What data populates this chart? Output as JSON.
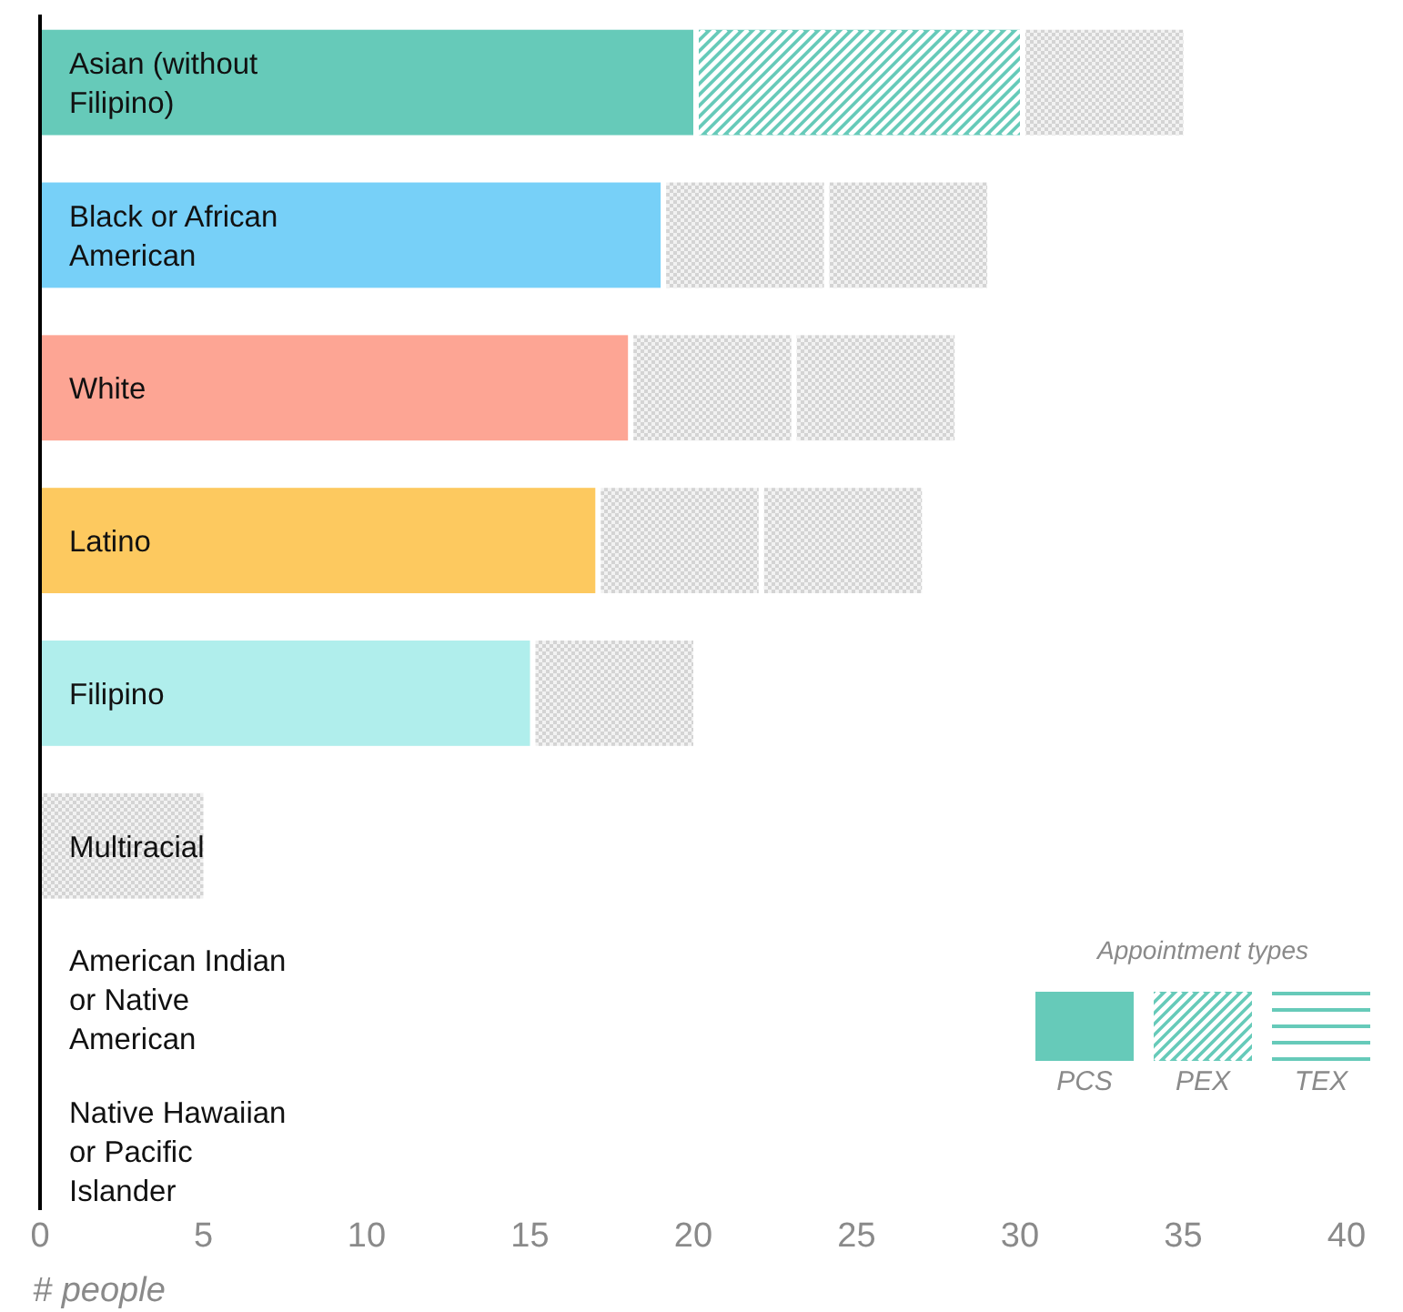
{
  "chart_data": {
    "type": "bar",
    "orientation": "horizontal",
    "stacked": true,
    "xlabel": "# people",
    "legend_title": "Appointment types",
    "legend": "bottom right",
    "categories": [
      "Asian (without Filipino)",
      "Black or African American",
      "White",
      "Latino",
      "Filipino",
      "Multiracial",
      "American Indian or Native American",
      "Native Hawaiian or Pacific Islander"
    ],
    "series": [
      {
        "name": "PCS",
        "color": "#66cab9",
        "colors": [
          "#66cab9",
          "#77d0f8",
          "#fda594",
          "#fdc95f",
          "#b0eeec",
          null,
          null,
          null
        ],
        "values": [
          20,
          19,
          18,
          17,
          15,
          null,
          null,
          null
        ]
      },
      {
        "name": "PEX",
        "color": "#66cab9",
        "values": [
          10,
          null,
          null,
          null,
          null,
          null,
          null,
          null
        ]
      },
      {
        "name": "TEX",
        "color": "#66cab9",
        "values": [
          null,
          null,
          null,
          null,
          null,
          null,
          null,
          null
        ]
      },
      {
        "color": "#d4d4d4",
        "values": [
          5,
          5,
          5,
          5,
          5,
          5,
          null,
          null
        ]
      },
      {
        "color": "#d4d4d4",
        "values": [
          null,
          5,
          5,
          5,
          null,
          null,
          null,
          null
        ]
      }
    ],
    "xlim": [
      0,
      40
    ],
    "xticks": [
      0,
      5,
      10,
      15,
      20,
      25,
      30,
      35,
      40
    ],
    "grid": false
  }
}
